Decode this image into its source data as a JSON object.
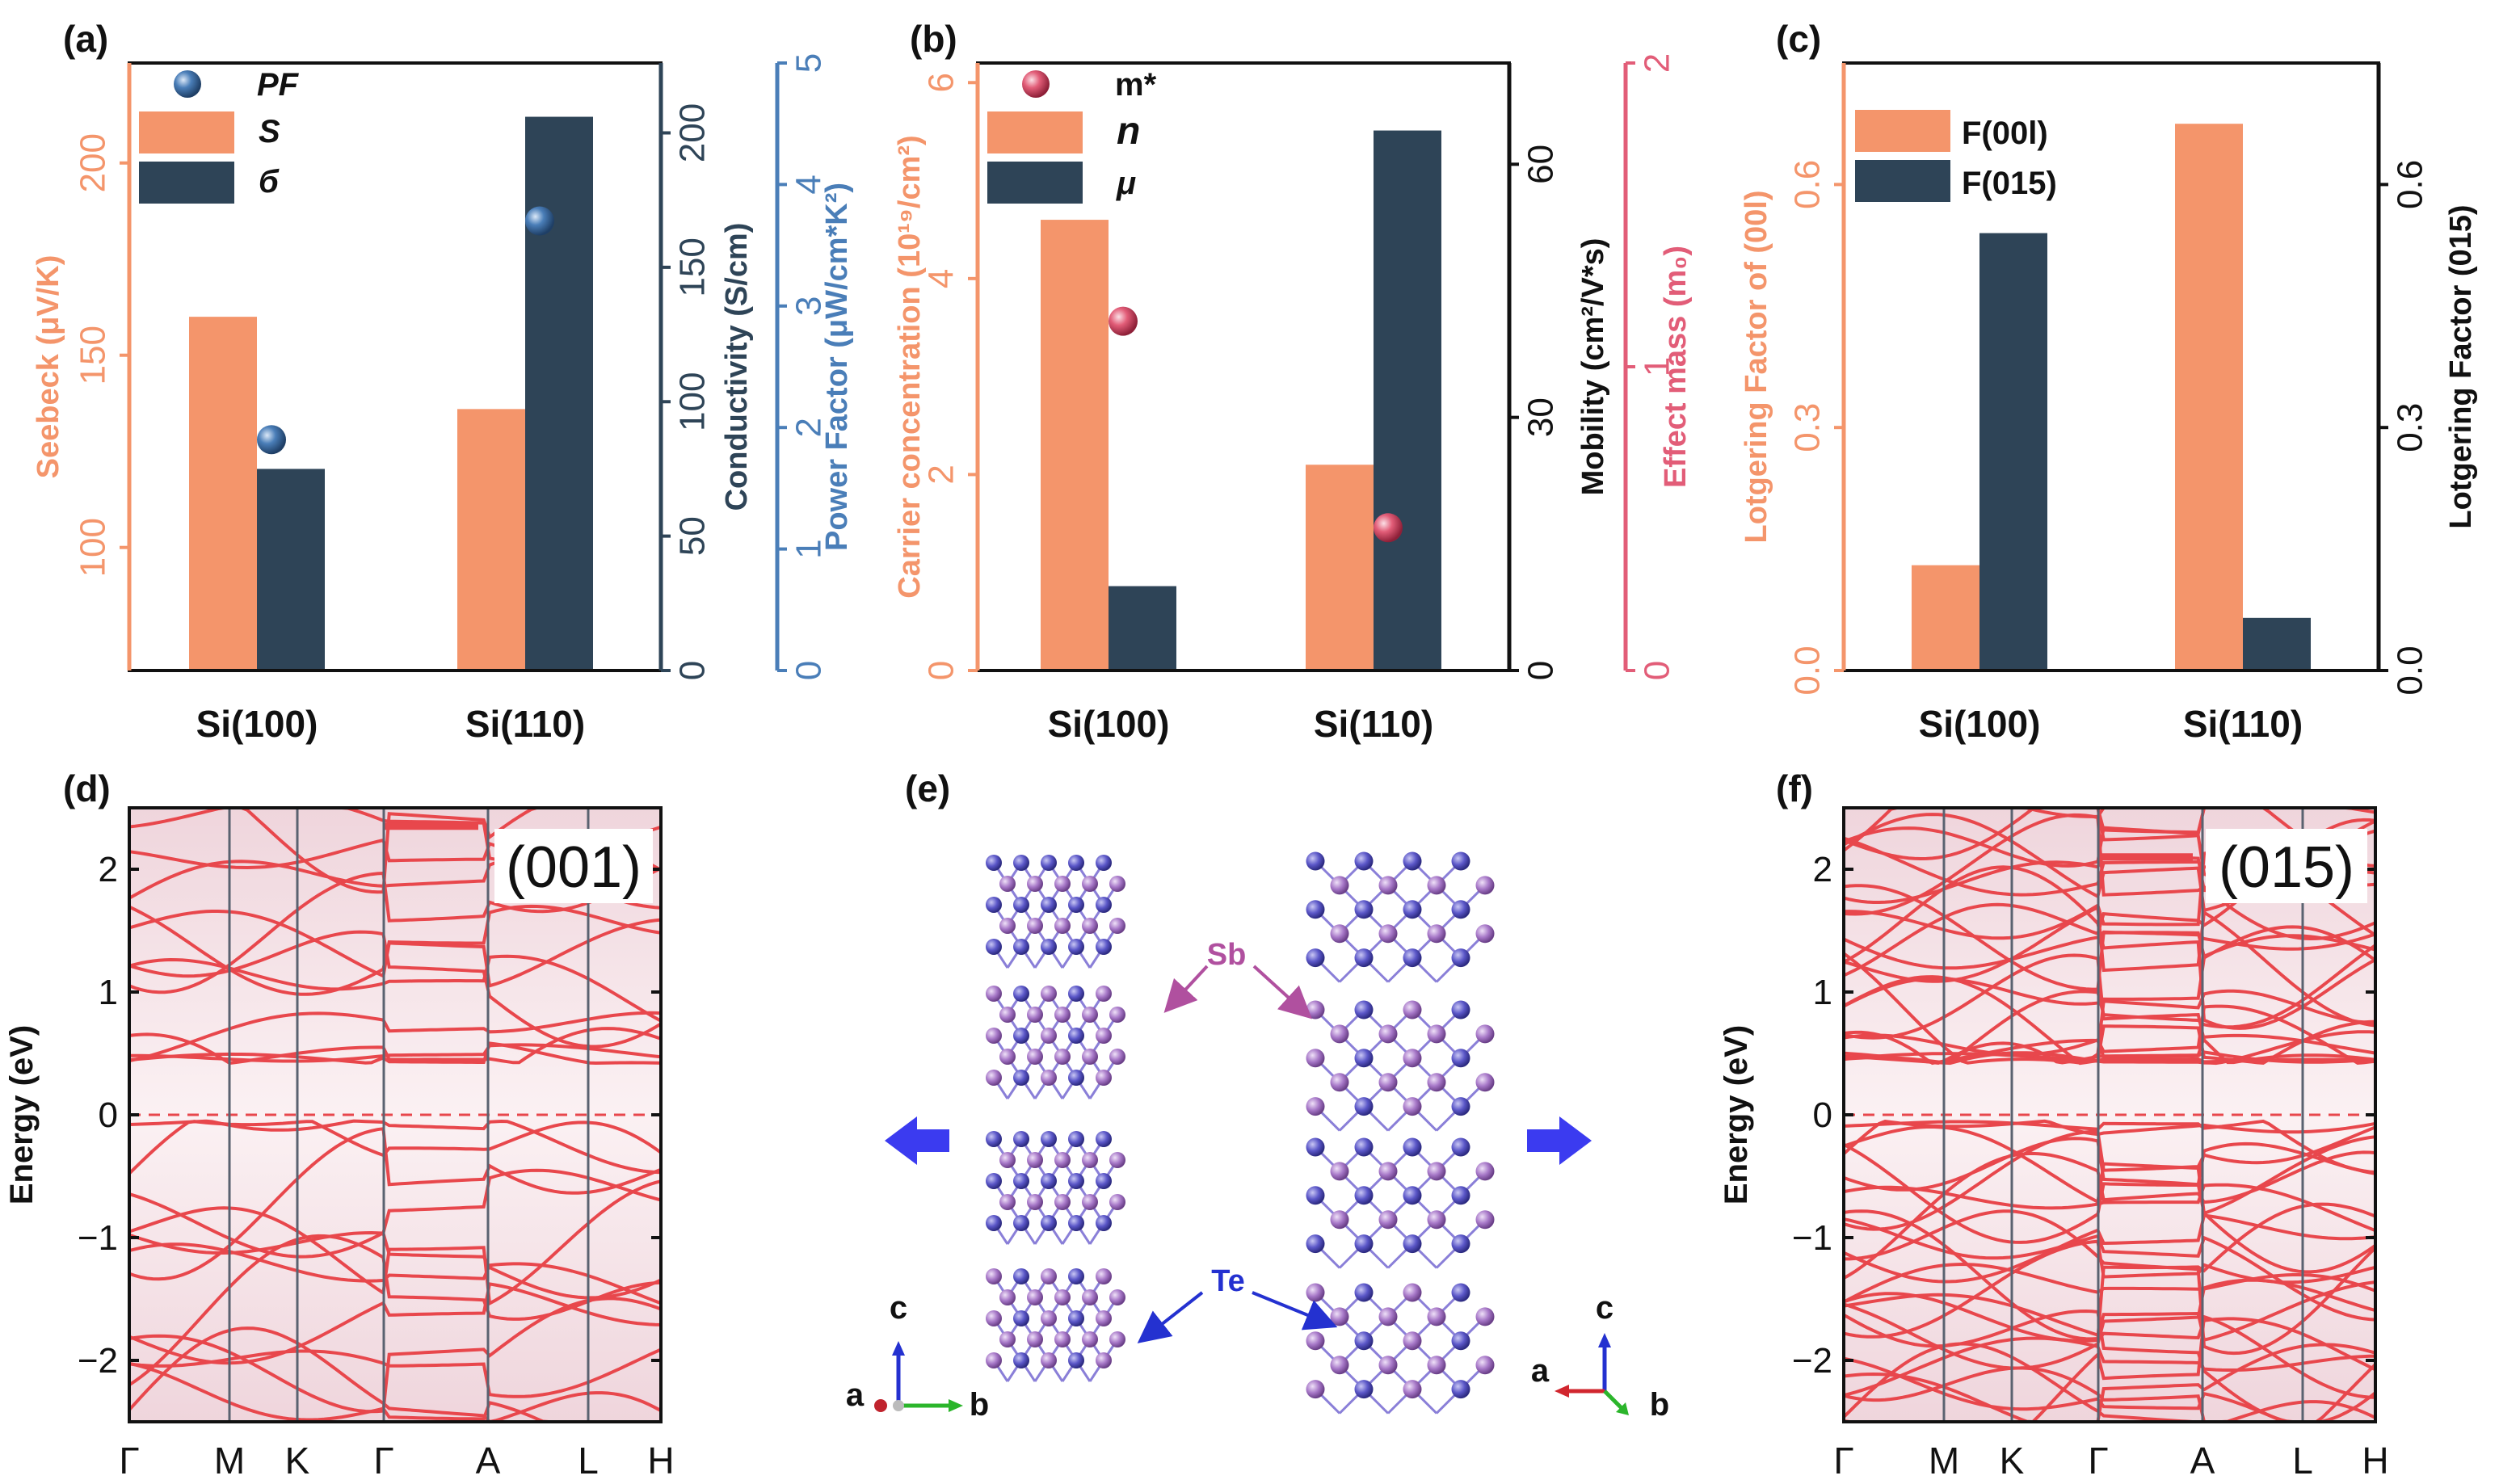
{
  "panels": {
    "a": {
      "label": "(a)"
    },
    "b": {
      "label": "(b)"
    },
    "c": {
      "label": "(c)"
    },
    "d": {
      "label": "(d)"
    },
    "e": {
      "label": "(e)"
    },
    "f": {
      "label": "(f)"
    }
  },
  "colors": {
    "orange": "#F4956B",
    "dark": "#2E4457",
    "blue": "#4A7EB8",
    "pink": "#E25D78",
    "band": "#E8474C",
    "te": "#5B57C8",
    "sb": "#A778C8"
  },
  "chart_data": [
    {
      "id": "a",
      "type": "bar",
      "categories": [
        "Si(100)",
        "Si(110)"
      ],
      "series": [
        {
          "name": "S",
          "axis": "Seebeck",
          "values": [
            160,
            136
          ]
        },
        {
          "name": "б",
          "axis": "Conductivity",
          "values": [
            75,
            206
          ]
        },
        {
          "name": "PF",
          "axis": "Power Factor",
          "kind": "scatter",
          "values": [
            1.9,
            3.7
          ]
        }
      ],
      "axes": {
        "left": {
          "label": "Seebeck (μV/K)",
          "range": [
            68,
            226
          ],
          "ticks": [
            100,
            150,
            200
          ]
        },
        "right1": {
          "label": "Conductivity (S/cm)",
          "range": [
            0,
            226
          ],
          "ticks": [
            0,
            50,
            100,
            150,
            200
          ]
        },
        "right2": {
          "label": "Power Factor (μW/cm*K²)",
          "range": [
            0,
            5
          ],
          "ticks": [
            0,
            1,
            2,
            3,
            4,
            5
          ]
        }
      }
    },
    {
      "id": "b",
      "type": "bar",
      "categories": [
        "Si(100)",
        "Si(110)"
      ],
      "series": [
        {
          "name": "n",
          "axis": "Carrier concentration",
          "values": [
            4.6,
            2.1
          ]
        },
        {
          "name": "μ",
          "axis": "Mobility",
          "values": [
            10,
            64
          ]
        },
        {
          "name": "m*",
          "axis": "Effect mass",
          "kind": "scatter",
          "values": [
            1.15,
            0.47
          ]
        }
      ],
      "axes": {
        "left": {
          "label": "Carrier concentration (10¹⁹/cm²)",
          "range": [
            0,
            6.2
          ],
          "ticks": [
            0,
            2,
            4,
            6
          ]
        },
        "right1": {
          "label": "Mobility (cm²/V*s)",
          "range": [
            0,
            72
          ],
          "ticks": [
            0,
            30,
            60
          ]
        },
        "right2": {
          "label": "Effect mass (m₀)",
          "range": [
            0,
            2
          ],
          "ticks": [
            0,
            1,
            2
          ]
        }
      }
    },
    {
      "id": "c",
      "type": "bar",
      "categories": [
        "Si(100)",
        "Si(110)"
      ],
      "series": [
        {
          "name": "F(00l)",
          "axis": "Lotgering Factor of (00l)",
          "values": [
            0.13,
            0.675
          ]
        },
        {
          "name": "F(015)",
          "axis": "Lotgering Factor (015)",
          "values": [
            0.54,
            0.065
          ]
        }
      ],
      "axes": {
        "left": {
          "label": "Lotgering Factor of (00l)",
          "range": [
            0,
            0.75
          ],
          "ticks": [
            "0.0",
            "0.3",
            "0.6"
          ]
        },
        "right1": {
          "label": "Lotgering Factor (015)",
          "range": [
            0,
            0.75
          ],
          "ticks": [
            "0.0",
            "0.3",
            "0.6"
          ]
        }
      }
    },
    {
      "id": "d",
      "type": "line",
      "title": "(001)",
      "ylabel": "Energy (eV)",
      "ylim": [
        -2.5,
        2.5
      ],
      "yticks": [
        "−2",
        "−1",
        "0",
        "1",
        "2"
      ],
      "kpoints": [
        "Γ",
        "M",
        "K",
        "Γ",
        "A",
        "L",
        "H"
      ]
    },
    {
      "id": "f",
      "type": "line",
      "title": "(015)",
      "ylabel": "Energy (eV)",
      "ylim": [
        -2.5,
        2.5
      ],
      "yticks": [
        "−2",
        "−1",
        "0",
        "1",
        "2"
      ],
      "kpoints": [
        "Γ",
        "M",
        "K",
        "Γ",
        "A",
        "L",
        "H"
      ]
    }
  ],
  "crystal": {
    "sb_label": "Sb",
    "te_label": "Te",
    "left_axes": {
      "up": "c",
      "left": "a",
      "right": "b"
    },
    "right_axes": {
      "up": "c",
      "left": "a",
      "right": "b"
    }
  }
}
